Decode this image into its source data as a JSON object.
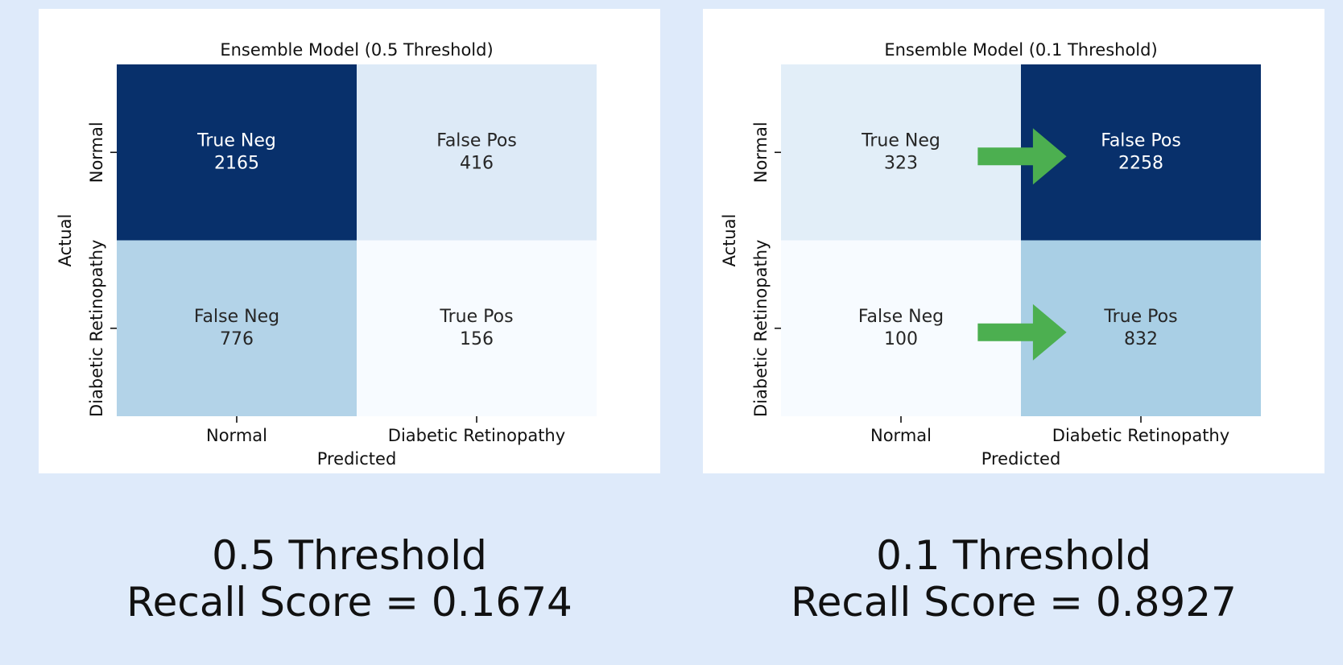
{
  "chart_data": [
    {
      "type": "heatmap",
      "title": "Ensemble Model (0.5 Threshold)",
      "xlabel": "Predicted",
      "ylabel": "Actual",
      "x_categories": [
        "Normal",
        "Diabetic Retinopathy"
      ],
      "y_categories": [
        "Normal",
        "Diabetic Retinopathy"
      ],
      "cells": [
        [
          {
            "label": "True Neg",
            "value": 2165
          },
          {
            "label": "False Pos",
            "value": 416
          }
        ],
        [
          {
            "label": "False Neg",
            "value": 776
          },
          {
            "label": "True Pos",
            "value": 156
          }
        ]
      ],
      "colormap": "Blues",
      "arrows": false
    },
    {
      "type": "heatmap",
      "title": "Ensemble Model (0.1 Threshold)",
      "xlabel": "Predicted",
      "ylabel": "Actual",
      "x_categories": [
        "Normal",
        "Diabetic Retinopathy"
      ],
      "y_categories": [
        "Normal",
        "Diabetic Retinopathy"
      ],
      "cells": [
        [
          {
            "label": "True Neg",
            "value": 323
          },
          {
            "label": "False Pos",
            "value": 2258
          }
        ],
        [
          {
            "label": "False Neg",
            "value": 100
          },
          {
            "label": "True Pos",
            "value": 832
          }
        ]
      ],
      "colormap": "Blues",
      "arrows": true,
      "arrow_color": "#4caf50"
    }
  ],
  "captions": {
    "left": {
      "threshold": "0.5 Threshold",
      "recall": "Recall Score = 0.1674"
    },
    "right": {
      "threshold": "0.1 Threshold",
      "recall": "Recall Score = 0.8927"
    }
  },
  "colors": {
    "background": "#deeafa",
    "panel": "#ffffff",
    "blues_low": "#f7fbff",
    "blues_high": "#08306b"
  }
}
